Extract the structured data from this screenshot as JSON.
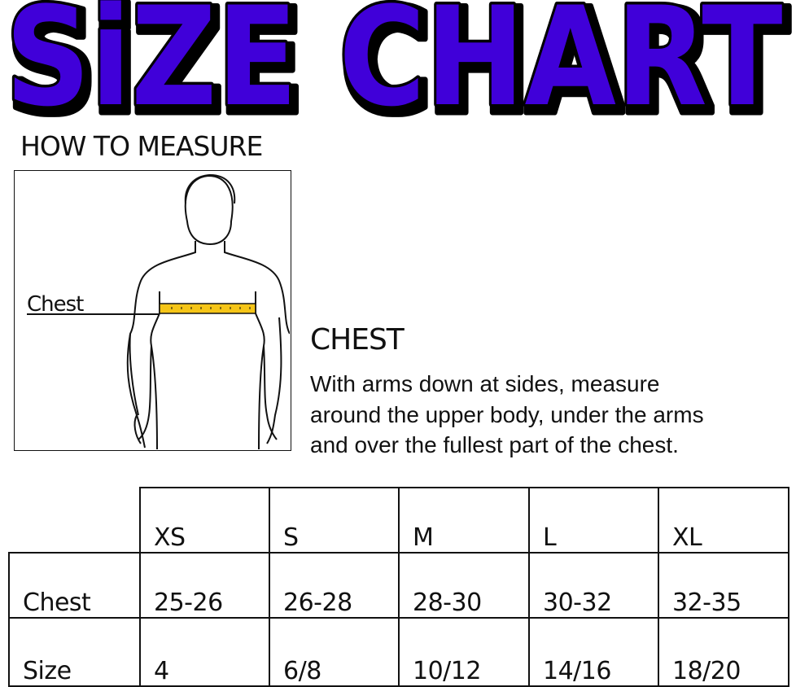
{
  "title": "SiZE CHART",
  "colors": {
    "title_fill": "#3f00d9",
    "title_outline": "#000000",
    "tape": "#f5c518"
  },
  "how_to_measure": {
    "heading": "HOW TO MEASURE",
    "figure_label": "Chest"
  },
  "chest": {
    "heading": "CHEST",
    "lines": [
      "With arms down at sides, measure",
      "around the upper body, under the arms",
      "and over the fullest part of the chest."
    ]
  },
  "table": {
    "headers": [
      "XS",
      "S",
      "M",
      "L",
      "XL"
    ],
    "rows": [
      {
        "label": "Chest",
        "values": [
          "25-26",
          "26-28",
          "28-30",
          "30-32",
          "32-35"
        ]
      },
      {
        "label": "Size",
        "values": [
          "4",
          "6/8",
          "10/12",
          "14/16",
          "18/20"
        ]
      }
    ]
  }
}
